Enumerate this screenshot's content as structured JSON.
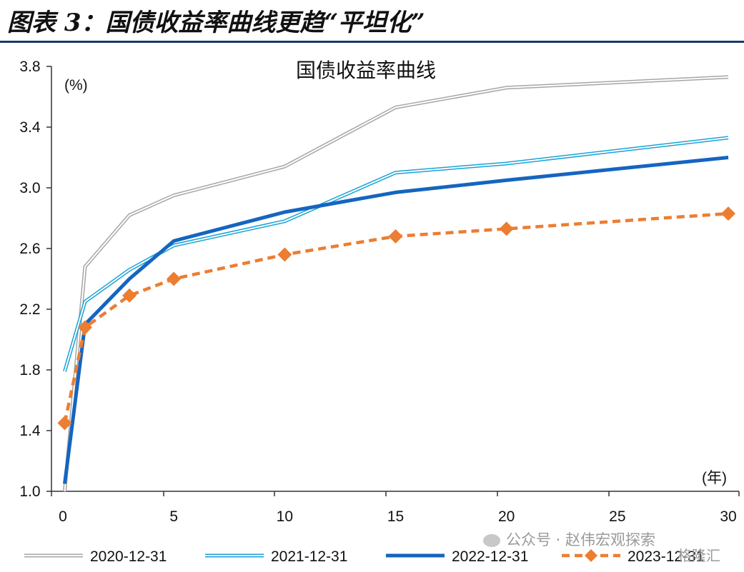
{
  "figure_title": "图表 3：国债收益率曲线更趋“平坦化”",
  "watermark": "公众号 · 赵伟宏观探索",
  "badge": "格隆汇",
  "chart_data": {
    "type": "line",
    "title": "国债收益率曲线",
    "ylabel": "(%)",
    "xlabel": "(年)",
    "xlim": [
      0,
      30
    ],
    "ylim": [
      1.0,
      3.8
    ],
    "xticks": [
      0,
      5,
      10,
      15,
      20,
      25,
      30
    ],
    "yticks": [
      1.0,
      1.4,
      1.8,
      2.2,
      2.6,
      3.0,
      3.4,
      3.8
    ],
    "legend_position": "bottom",
    "grid": false,
    "series": [
      {
        "name": "2020-12-31",
        "color": "#a6a6a6",
        "style": "double",
        "x": [
          0.08,
          1,
          3,
          5,
          10,
          15,
          20,
          30
        ],
        "y": [
          1.0,
          2.48,
          2.82,
          2.95,
          3.14,
          3.53,
          3.66,
          3.73
        ]
      },
      {
        "name": "2021-12-31",
        "color": "#1aa3d6",
        "style": "double",
        "x": [
          0.08,
          1,
          3,
          5,
          10,
          15,
          20,
          30
        ],
        "y": [
          1.79,
          2.25,
          2.46,
          2.62,
          2.78,
          3.1,
          3.16,
          3.33
        ]
      },
      {
        "name": "2022-12-31",
        "color": "#1565c0",
        "style": "solid",
        "x": [
          0.08,
          1,
          3,
          5,
          10,
          15,
          20,
          30
        ],
        "y": [
          1.05,
          2.1,
          2.4,
          2.65,
          2.84,
          2.97,
          3.05,
          3.2
        ]
      },
      {
        "name": "2023-12-31",
        "color": "#ed7d31",
        "style": "dashed",
        "marker": "diamond",
        "x": [
          0.08,
          1,
          3,
          5,
          10,
          15,
          20,
          30
        ],
        "y": [
          1.45,
          2.08,
          2.29,
          2.4,
          2.56,
          2.68,
          2.73,
          2.83
        ]
      }
    ]
  }
}
